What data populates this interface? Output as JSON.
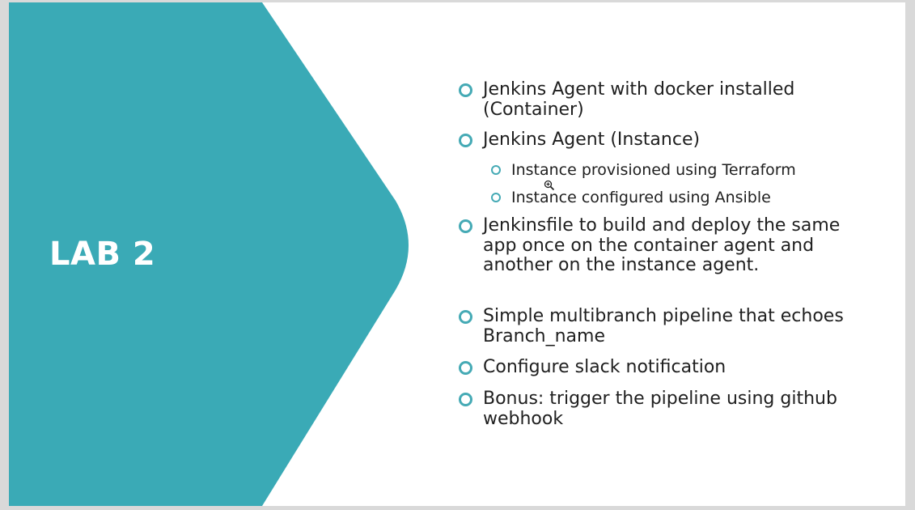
{
  "slide": {
    "title": "LAB 2",
    "accent_color": "#3aaab6",
    "bullets": [
      {
        "text": "Jenkins Agent with docker installed (Container)"
      },
      {
        "text": "Jenkins Agent (Instance)",
        "children": [
          {
            "text": "Instance provisioned using Terraform"
          },
          {
            "text": "Instance configured using Ansible"
          }
        ]
      },
      {
        "text": "Jenkinsfile to build and deploy the same app once on the container agent and another on the instance agent."
      },
      {
        "text": "Simple multibranch pipeline that echoes Branch_name"
      },
      {
        "text": "Configure slack notification"
      },
      {
        "text": "Bonus: trigger the pipeline using github webhook"
      }
    ],
    "bullet_icon": "hollow-circle-icon",
    "cursor_icon": "zoom-in-icon"
  }
}
